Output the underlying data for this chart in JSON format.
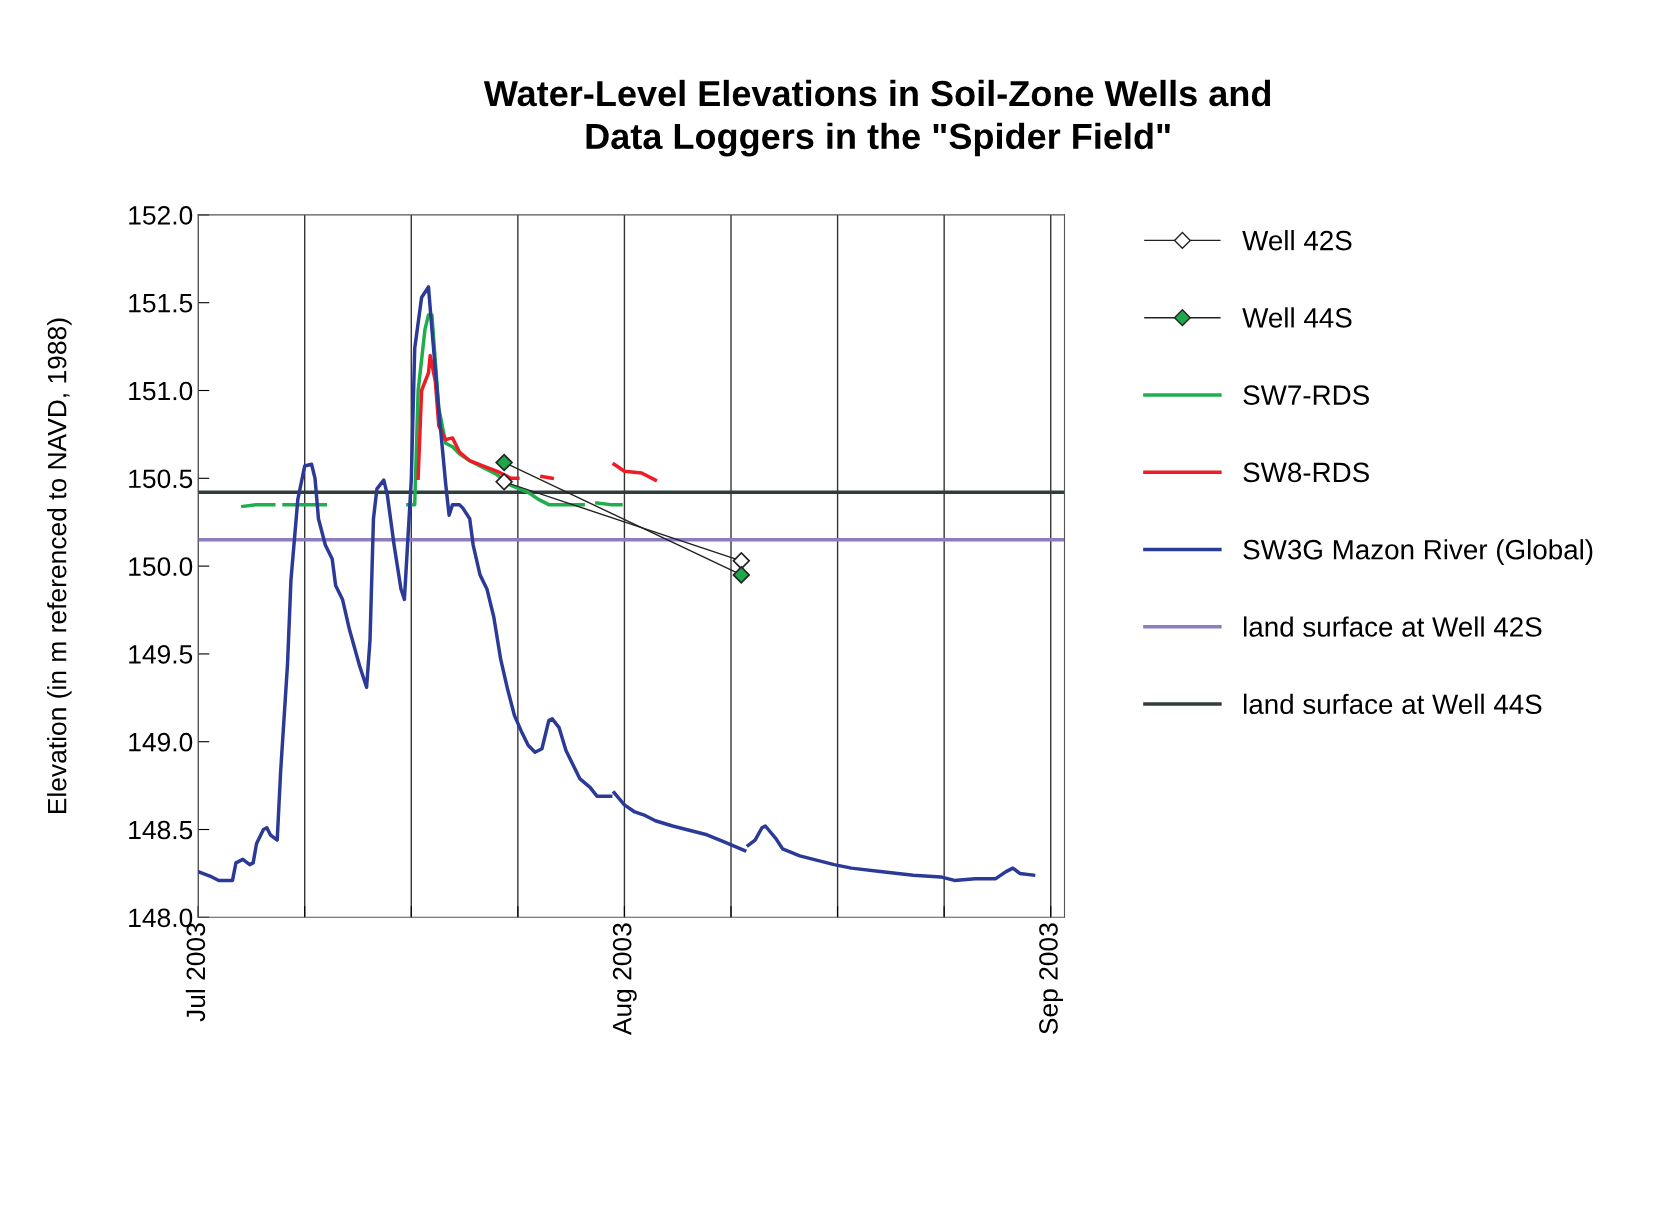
{
  "chart_data": {
    "type": "line",
    "title": "Water-Level Elevations in Soil-Zone Wells and\nData Loggers in the \"Spider Field\"",
    "ylabel": "Elevation (in m referenced to NAVD, 1988)",
    "xlim": [
      "2003-07-01",
      "2003-09-02"
    ],
    "xticks": [
      {
        "value": "2003-07-01",
        "label": "Jul 2003"
      },
      {
        "value": "2003-07-08T18:00",
        "label": null
      },
      {
        "value": "2003-07-16T12:00",
        "label": null
      },
      {
        "value": "2003-07-24T06:00",
        "label": null
      },
      {
        "value": "2003-08-01",
        "label": "Aug 2003"
      },
      {
        "value": "2003-08-08T18:00",
        "label": null
      },
      {
        "value": "2003-08-16T12:00",
        "label": null
      },
      {
        "value": "2003-08-24T06:00",
        "label": null
      },
      {
        "value": "2003-09-01",
        "label": "Sep 2003"
      }
    ],
    "ylim": [
      148.0,
      152.0
    ],
    "yticks": [
      {
        "value": 148.0,
        "label": "148.0"
      },
      {
        "value": 148.5,
        "label": "148.5"
      },
      {
        "value": 149.0,
        "label": "149.0"
      },
      {
        "value": 149.5,
        "label": "149.5"
      },
      {
        "value": 150.0,
        "label": "150.0"
      },
      {
        "value": 150.5,
        "label": "150.5"
      },
      {
        "value": 151.0,
        "label": "151.0"
      },
      {
        "value": 151.5,
        "label": "151.5"
      },
      {
        "value": 152.0,
        "label": "152.0"
      }
    ],
    "grid": "x",
    "legend": "right",
    "series": [
      {
        "name": "Well 42S",
        "color": "#ffffff",
        "marker": "diamond",
        "x": [
          "2003-07-23T06:00",
          "2003-08-09T12:00"
        ],
        "values": [
          150.48,
          150.03
        ]
      },
      {
        "name": "Well 44S",
        "color": "#1fa84a",
        "marker": "diamond",
        "x": [
          "2003-07-23T06:00",
          "2003-08-09T12:00"
        ],
        "values": [
          150.59,
          149.95
        ]
      },
      {
        "name": "SW7-RDS",
        "color": "#1fae4b",
        "x": [
          "2003-07-04T06:00",
          "2003-07-05T06:00",
          "2003-07-06T12:00",
          "2003-07-06T18:00",
          "2003-07-07T06:00",
          "2003-07-08T12:00",
          "2003-07-10T06:00",
          "2003-07-13T00:00",
          "2003-07-16T06:00",
          "2003-07-16T18:00",
          "2003-07-17T00:00",
          "2003-07-17T12:00",
          "2003-07-17T18:00",
          "2003-07-18T00:00",
          "2003-07-18T12:00",
          "2003-07-19T00:00",
          "2003-07-19T12:00",
          "2003-07-20T00:00",
          "2003-07-20T18:00",
          "2003-07-21T18:00",
          "2003-07-22T18:00",
          "2003-07-23T18:00",
          "2003-07-25T00:00",
          "2003-07-25T18:00",
          "2003-07-26T12:00",
          "2003-07-27T12:00",
          "2003-07-29T00:00",
          "2003-07-29T12:00",
          "2003-07-30T00:00",
          "2003-07-31T00:00",
          "2003-07-31T18:00"
        ],
        "values": [
          150.34,
          150.35,
          150.35,
          null,
          150.35,
          150.35,
          150.35,
          null,
          150.35,
          150.35,
          151.0,
          151.35,
          151.43,
          151.43,
          150.9,
          150.7,
          150.68,
          150.64,
          150.6,
          150.56,
          150.52,
          150.46,
          150.42,
          150.38,
          150.35,
          150.35,
          150.35,
          null,
          150.36,
          150.35,
          150.35
        ]
      },
      {
        "name": "SW8-RDS",
        "color": "#ee1c25",
        "x": [
          "2003-07-17T00:00",
          "2003-07-17T06:00",
          "2003-07-17T18:00",
          "2003-07-17T21:00",
          "2003-07-18T06:00",
          "2003-07-18T12:00",
          "2003-07-19T00:00",
          "2003-07-19T12:00",
          "2003-07-20T00:00",
          "2003-07-20T18:00",
          "2003-07-21T18:00",
          "2003-07-22T18:00",
          "2003-07-23T18:00",
          "2003-07-24T06:00",
          "2003-07-24T12:00",
          "2003-07-26T00:00",
          "2003-07-26T18:00",
          "2003-07-28T00:00",
          "2003-07-31T06:00",
          "2003-08-01T00:00",
          "2003-08-02T06:00",
          "2003-08-03T06:00"
        ],
        "values": [
          150.5,
          151.0,
          151.1,
          151.2,
          151.05,
          150.8,
          150.72,
          150.73,
          150.65,
          150.6,
          150.57,
          150.54,
          150.5,
          150.5,
          null,
          150.51,
          150.5,
          null,
          150.58,
          150.54,
          150.53,
          150.49
        ]
      },
      {
        "name": "SW3G Mazon River (Global)",
        "color": "#2b3a96",
        "x": [
          "2003-07-01T00:00",
          "2003-07-02T00:00",
          "2003-07-02T12:00",
          "2003-07-03T12:00",
          "2003-07-03T18:00",
          "2003-07-04T06:00",
          "2003-07-04T18:00",
          "2003-07-05T00:00",
          "2003-07-05T06:00",
          "2003-07-05T18:00",
          "2003-07-06T00:00",
          "2003-07-06T06:00",
          "2003-07-06T18:00",
          "2003-07-07T00:00",
          "2003-07-07T12:00",
          "2003-07-07T18:00",
          "2003-07-08T06:00",
          "2003-07-08T18:00",
          "2003-07-09T06:00",
          "2003-07-09T12:00",
          "2003-07-09T18:00",
          "2003-07-10T06:00",
          "2003-07-10T18:00",
          "2003-07-11T00:00",
          "2003-07-11T12:00",
          "2003-07-12T00:00",
          "2003-07-12T12:00",
          "2003-07-12T18:00",
          "2003-07-13T06:00",
          "2003-07-13T12:00",
          "2003-07-13T18:00",
          "2003-07-14T00:00",
          "2003-07-14T12:00",
          "2003-07-14T18:00",
          "2003-07-15T06:00",
          "2003-07-15T18:00",
          "2003-07-16T00:00",
          "2003-07-16T12:00",
          "2003-07-16T18:00",
          "2003-07-17T06:00",
          "2003-07-17T18:00",
          "2003-07-18T00:00",
          "2003-07-18T12:00",
          "2003-07-19T00:00",
          "2003-07-19T06:00",
          "2003-07-19T12:00",
          "2003-07-20T00:00",
          "2003-07-20T06:00",
          "2003-07-20T18:00",
          "2003-07-21T00:00",
          "2003-07-21T12:00",
          "2003-07-22T00:00",
          "2003-07-22T12:00",
          "2003-07-23T00:00",
          "2003-07-23T12:00",
          "2003-07-24T00:00",
          "2003-07-24T12:00",
          "2003-07-25T00:00",
          "2003-07-25T12:00",
          "2003-07-26T00:00",
          "2003-07-26T12:00",
          "2003-07-26T18:00",
          "2003-07-27T06:00",
          "2003-07-27T18:00",
          "2003-07-28T06:00",
          "2003-07-28T18:00",
          "2003-07-29T12:00",
          "2003-07-30T00:00",
          "2003-07-31T00:00",
          "2003-07-31T03:00",
          "2003-07-31T06:00",
          "2003-08-01T00:00",
          "2003-08-01T18:00",
          "2003-08-02T12:00",
          "2003-08-03T06:00",
          "2003-08-04T12:00",
          "2003-08-05T12:00",
          "2003-08-07T00:00",
          "2003-08-08T06:00",
          "2003-08-09T18:00",
          "2003-08-09T21:00",
          "2003-08-10T00:00",
          "2003-08-10T12:00",
          "2003-08-11T00:00",
          "2003-08-11T06:00",
          "2003-08-12T00:00",
          "2003-08-12T12:00",
          "2003-08-13T18:00",
          "2003-08-14T18:00",
          "2003-08-16T06:00",
          "2003-08-17T12:00",
          "2003-08-19T18:00",
          "2003-08-22T00:00",
          "2003-08-24T00:00",
          "2003-08-25T00:00",
          "2003-08-26T12:00",
          "2003-08-28T00:00",
          "2003-08-28T18:00",
          "2003-08-29T06:00",
          "2003-08-29T18:00",
          "2003-08-30T18:00"
        ],
        "values": [
          148.26,
          148.23,
          148.21,
          148.21,
          148.31,
          148.33,
          148.3,
          148.31,
          148.42,
          148.5,
          148.51,
          148.47,
          148.44,
          148.83,
          149.44,
          149.92,
          150.38,
          150.57,
          150.58,
          150.5,
          150.27,
          150.12,
          150.04,
          149.89,
          149.81,
          149.64,
          149.5,
          149.43,
          149.31,
          149.58,
          150.27,
          150.44,
          150.49,
          150.41,
          150.12,
          149.87,
          149.81,
          150.49,
          151.24,
          151.53,
          151.59,
          151.35,
          150.89,
          150.47,
          150.29,
          150.35,
          150.35,
          150.33,
          150.27,
          150.12,
          149.95,
          149.87,
          149.71,
          149.47,
          149.3,
          149.15,
          149.06,
          148.98,
          148.94,
          148.96,
          149.12,
          149.13,
          149.08,
          148.95,
          148.87,
          148.79,
          148.74,
          148.69,
          148.69,
          null,
          148.71,
          148.64,
          148.6,
          148.58,
          148.55,
          148.52,
          148.5,
          148.47,
          148.43,
          148.38,
          null,
          148.41,
          148.44,
          148.51,
          148.52,
          148.45,
          148.39,
          148.35,
          148.33,
          148.3,
          148.28,
          148.26,
          148.24,
          148.23,
          148.21,
          148.22,
          148.22,
          148.26,
          148.28,
          148.25,
          148.24
        ]
      }
    ],
    "ref_lines": [
      {
        "axis": "y",
        "value": 150.15,
        "label": "land surface at Well 42S",
        "color": "#8f7bc0"
      },
      {
        "axis": "y",
        "value": 150.42,
        "label": "land surface at Well 44S",
        "color": "#2f3d3d"
      }
    ]
  }
}
